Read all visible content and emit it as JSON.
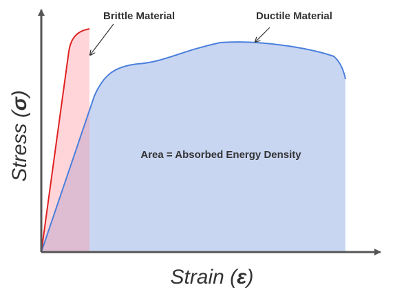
{
  "annotations": {
    "brittle": "Brittle Material",
    "ductile": "Ductile Material",
    "area": "Area = Absorbed Energy Density"
  },
  "y_label": {
    "prefix": "Stress (",
    "symbol": "σ",
    "suffix": ")"
  },
  "x_label": {
    "prefix": "Strain (",
    "symbol": "ε",
    "suffix": ")"
  }
}
